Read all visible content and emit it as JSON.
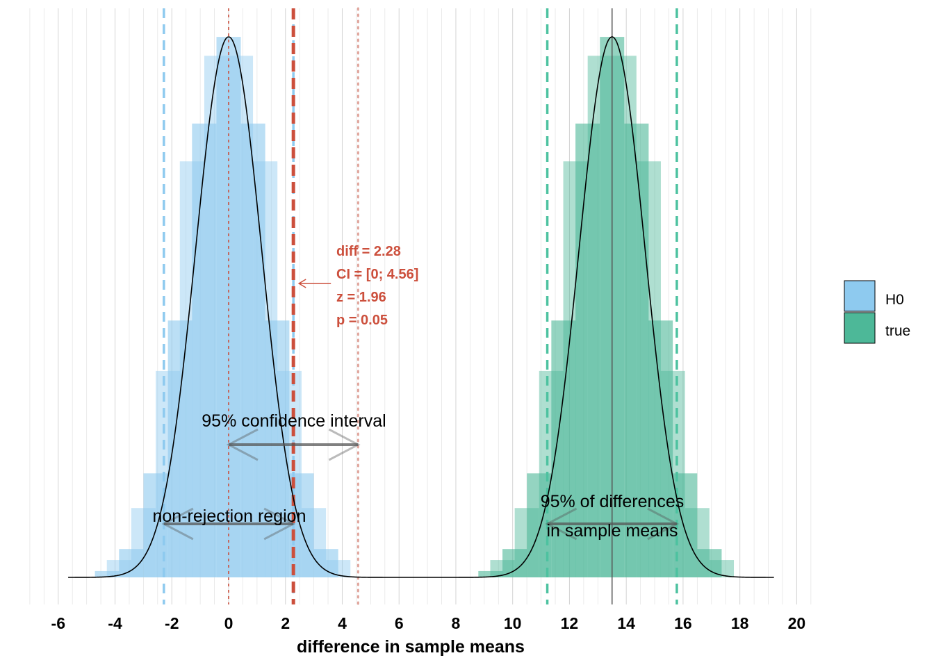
{
  "chart_data": {
    "type": "histogram",
    "xlabel": "difference in sample means",
    "ylabel": "",
    "xlim": [
      -7.0,
      20.5
    ],
    "x_ticks": [
      -6,
      -4,
      -2,
      0,
      2,
      4,
      6,
      8,
      10,
      12,
      14,
      16,
      18,
      20
    ],
    "grid": "vertical",
    "legend": {
      "position": "right",
      "entries": [
        {
          "label": "H0",
          "color": "#8ecaef"
        },
        {
          "label": "true",
          "color": "#4db898"
        }
      ]
    },
    "series": [
      {
        "name": "H0",
        "color": "#8ecaef",
        "mean": 0,
        "sd": 1.163,
        "bin_width": 0.8565,
        "bins_center": [
          -4.28,
          -3.43,
          -2.57,
          -1.71,
          -0.86,
          0.0,
          0.86,
          1.71,
          2.57,
          3.43
        ],
        "bins_density": [
          0.004,
          0.018,
          0.066,
          0.163,
          0.288,
          0.343,
          0.288,
          0.163,
          0.066,
          0.018
        ],
        "bins_alt_center": [
          -3.86,
          -3.0,
          -2.14,
          -1.29,
          -0.43,
          0.43,
          1.29,
          2.14,
          3.0,
          3.86
        ],
        "bins_alt_density": [
          0.011,
          0.044,
          0.131,
          0.264,
          0.331,
          0.331,
          0.264,
          0.131,
          0.044,
          0.011
        ],
        "critical_values": [
          -2.28,
          2.28
        ]
      },
      {
        "name": "true",
        "color": "#4db898",
        "mean": 13.5,
        "sd": 1.163,
        "bin_width": 0.8565,
        "bins_center": [
          9.22,
          10.07,
          10.93,
          11.79,
          12.64,
          13.5,
          14.36,
          15.21,
          16.07,
          16.93
        ],
        "bins_density": [
          0.004,
          0.018,
          0.066,
          0.163,
          0.288,
          0.343,
          0.288,
          0.163,
          0.066,
          0.018
        ],
        "bins_alt_center": [
          9.64,
          10.5,
          11.36,
          12.21,
          13.07,
          13.93,
          14.79,
          15.64,
          16.5,
          17.36
        ],
        "bins_alt_density": [
          0.011,
          0.044,
          0.131,
          0.264,
          0.331,
          0.331,
          0.264,
          0.131,
          0.044,
          0.011
        ],
        "interval_95": [
          11.22,
          15.78
        ]
      }
    ],
    "observed": {
      "diff": 2.28,
      "ci": [
        0,
        4.56
      ],
      "color": "#cc4f3c"
    },
    "stat_labels": [
      "diff = 2.28",
      "CI = [0; 4.56]",
      "z = 1.96",
      "p = 0.05"
    ],
    "annotations": {
      "confidence_interval": "95% confidence interval",
      "non_rejection": "non-rejection region",
      "differences_line1": "95% of differences",
      "differences_line2": "in sample means"
    }
  }
}
